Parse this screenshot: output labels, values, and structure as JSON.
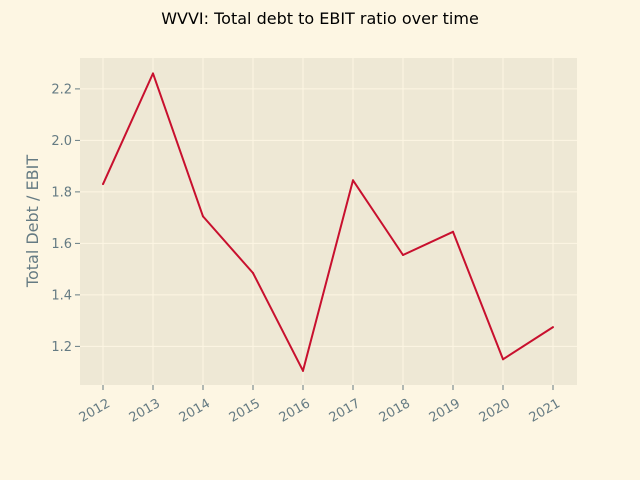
{
  "chart_data": {
    "type": "line",
    "title": "WVVI: Total debt to EBIT ratio over time",
    "xlabel": "",
    "ylabel": "Total Debt / EBIT",
    "x": [
      "2012",
      "2013",
      "2014",
      "2015",
      "2016",
      "2017",
      "2018",
      "2019",
      "2020",
      "2021"
    ],
    "series": [
      {
        "values": [
          1.83,
          2.26,
          1.705,
          1.485,
          1.105,
          1.845,
          1.555,
          1.645,
          1.15,
          1.275
        ]
      }
    ],
    "yticks": [
      "1.2",
      "1.4",
      "1.6",
      "1.8",
      "2.0",
      "2.2"
    ],
    "ylim": [
      1.05,
      2.32
    ],
    "grid": true,
    "legend": "none",
    "colors": {
      "background": "#fdf6e3",
      "plot_background": "#eee8d5",
      "line": "#c8102e",
      "grid": "#fdf6e3",
      "tick_text": "#657b83",
      "axis_label": "#657b83",
      "title": "#000000"
    }
  }
}
